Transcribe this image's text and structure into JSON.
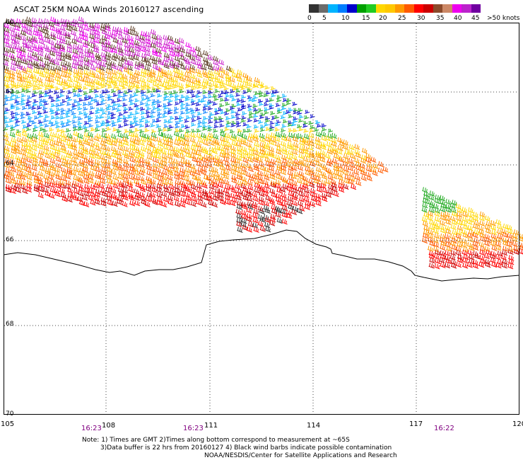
{
  "title": "ASCAT 25KM NOAA Winds 20160127 ascending",
  "colorbar": {
    "colors": [
      "#333333",
      "#6b6b6b",
      "#00b4ff",
      "#007dff",
      "#0000cc",
      "#00a000",
      "#22cc22",
      "#ffd700",
      "#ffc800",
      "#ff9900",
      "#ff5a00",
      "#ff0000",
      "#cc0000",
      "#8b4a2b",
      "#cc8866",
      "#ee00ee",
      "#bb22cc",
      "#7000a0"
    ],
    "labels": [
      "0",
      "5",
      "10",
      "15",
      "20",
      "25",
      "30",
      "35",
      "40",
      "45",
      ">50 knots"
    ]
  },
  "axes": {
    "lon_ticks": [
      "105",
      "108",
      "111",
      "114",
      "117",
      "120"
    ],
    "lat_ticks": [
      "60",
      "62",
      "64",
      "66",
      "68",
      "70"
    ],
    "times": [
      "16:23",
      "16:23",
      "16:22"
    ]
  },
  "notes": [
    "Note: 1) Times are GMT 2)Times along bottom correspond to measurement at ~65S",
    "3)Data buffer is 22 hrs from 20160127 4) Black wind barbs indicate possible contamination",
    "NOAA/NESDIS/Center for Satellite Applications and Research"
  ],
  "colors": {
    "dotted_grid": "#444444",
    "coastline": "#000000",
    "time_label": "#800080"
  }
}
